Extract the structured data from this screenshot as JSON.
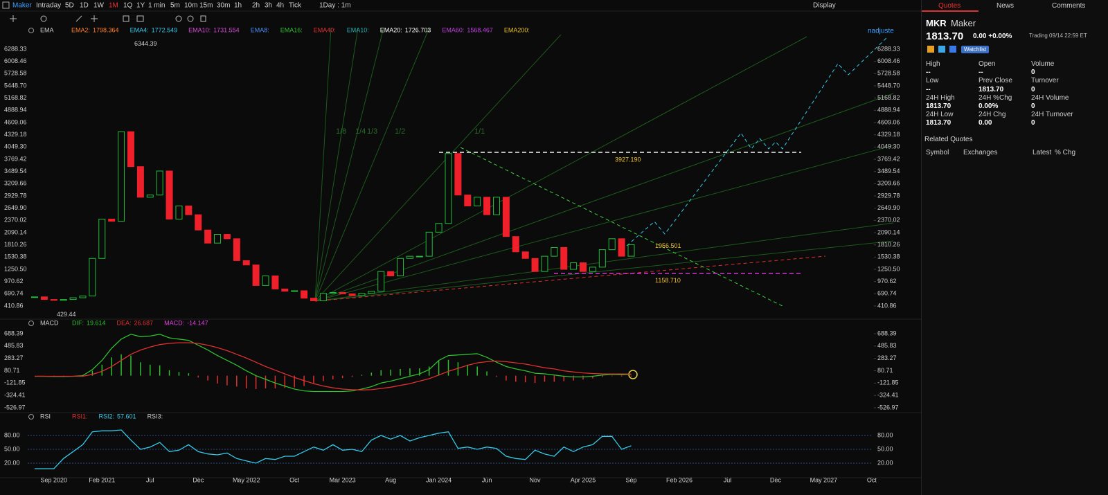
{
  "toolbar": {
    "symbol": "Maker",
    "periods": [
      "Intraday",
      "5D",
      "1D",
      "1W",
      "1M",
      "1Q",
      "1Y",
      "1 min",
      "5m",
      "10m",
      "15m",
      "30m",
      "1h",
      "2h",
      "3h",
      "4h",
      "Tick"
    ],
    "interval": "1Day : 1m",
    "display": "Display",
    "adjust": "nadjuste"
  },
  "chart_data": [
    {
      "type": "candlestick",
      "indicator": "EMA",
      "legend": [
        {
          "name": "EMA2:",
          "value": "1798.364",
          "color": "#ff7f27"
        },
        {
          "name": "EMA4:",
          "value": "1772.549",
          "color": "#35c9e8"
        },
        {
          "name": "EMA10:",
          "value": "1731.554",
          "color": "#d64ad6"
        },
        {
          "name": "EMA8:",
          "color": "#4a8ef0"
        },
        {
          "name": "EMA16:",
          "color": "#2fbf2f"
        },
        {
          "name": "EMA40:",
          "color": "#e03030"
        },
        {
          "name": "EMA10:",
          "color": "#2ab0b0"
        },
        {
          "name": "EMA20:",
          "value": "1726.703",
          "color": "#ffffff"
        },
        {
          "name": "EMA60:",
          "value": "1568.467",
          "color": "#c040e0"
        },
        {
          "name": "EMA200:",
          "color": "#e8c020"
        }
      ],
      "close": [
        620,
        560,
        540,
        560,
        600,
        640,
        1500,
        2400,
        2350,
        4400,
        3600,
        2900,
        2950,
        3500,
        2400,
        2700,
        2500,
        2150,
        1850,
        2050,
        1950,
        1450,
        1350,
        880,
        1100,
        800,
        750,
        760,
        590,
        530,
        700,
        720,
        690,
        650,
        700,
        750,
        1200,
        1100,
        1500,
        1550,
        1550,
        2100,
        2300,
        3900,
        2950,
        2700,
        2900,
        2500,
        2900,
        2000,
        1650,
        1500,
        1200,
        1550,
        1750,
        1250,
        1400,
        1200,
        1300,
        1700,
        1950,
        1550,
        1813.7
      ],
      "up_color": "#1fbf3a",
      "down_color": "#f0202a",
      "ylim": [
        125.7,
        6779.4
      ],
      "xlim": [
        -3.6,
        89.6
      ],
      "yticks": [
        6288.33,
        6008.46,
        5728.58,
        {
          "value": 5448.7,
          "label": "5448.70"
        },
        5168.82,
        4888.94,
        4609.06,
        4329.18,
        {
          "value": 4049.3,
          "label": "4049.30"
        },
        3769.42,
        3489.54,
        3209.66,
        2929.78,
        {
          "value": 2649.9,
          "label": "2649.90"
        },
        2370.02,
        2090.14,
        1810.26,
        1530.38,
        {
          "value": 1250.5,
          "label": "1250.50"
        },
        970.62,
        690.74,
        410.86
      ],
      "high_marker": 6344.39,
      "low_marker": 429.44,
      "levels": [
        {
          "value": 3927.19,
          "label": "3927.190",
          "color": "#ffffff"
        },
        {
          "value": 1956.501,
          "label": "1956.501"
        },
        {
          "value": 1158.71,
          "label": "1158.710",
          "color": "#e040e0"
        }
      ],
      "fan_labels": [
        "1/8",
        "1/4",
        "1/3",
        "1/2",
        "1/1"
      ]
    },
    {
      "type": "macd",
      "indicator": "MACD",
      "legend": [
        {
          "name": "DIF:",
          "value": "19.614",
          "color": "#2fbf2f"
        },
        {
          "name": "DEA:",
          "value": "26.687",
          "color": "#e03030"
        },
        {
          "name": "MACD:",
          "value": "-14.147",
          "color": "#e040e0"
        }
      ],
      "series": [
        {
          "name": "DIF",
          "color": "#2fbf2f",
          "values": [
            -10,
            -10,
            -15,
            -15,
            -10,
            0,
            100,
            250,
            450,
            600,
            680,
            640,
            650,
            680,
            620,
            600,
            580,
            500,
            420,
            330,
            250,
            170,
            80,
            0,
            -60,
            -120,
            -170,
            -220,
            -250,
            -260,
            -260,
            -260,
            -260,
            -250,
            -220,
            -180,
            -120,
            -90,
            -50,
            -10,
            30,
            100,
            250,
            330,
            340,
            350,
            360,
            300,
            220,
            150,
            110,
            80,
            40,
            30,
            10,
            -10,
            -20,
            -20,
            -10,
            10,
            20,
            15,
            19.614
          ]
        },
        {
          "name": "DEA",
          "color": "#e03030",
          "values": [
            -10,
            -10,
            -10,
            -10,
            -10,
            -10,
            20,
            70,
            150,
            250,
            350,
            420,
            470,
            510,
            530,
            540,
            540,
            530,
            500,
            460,
            410,
            350,
            290,
            220,
            150,
            90,
            30,
            -30,
            -80,
            -130,
            -170,
            -200,
            -220,
            -230,
            -235,
            -230,
            -210,
            -190,
            -160,
            -130,
            -90,
            -50,
            10,
            70,
            120,
            170,
            210,
            230,
            240,
            230,
            210,
            190,
            160,
            130,
            110,
            80,
            60,
            45,
            35,
            30,
            28,
            27,
            26.687
          ]
        },
        {
          "name": "MACD",
          "values": [
            0,
            0,
            -5,
            -5,
            0,
            10,
            80,
            180,
            300,
            350,
            330,
            220,
            180,
            170,
            90,
            60,
            40,
            -30,
            -80,
            -130,
            -160,
            -180,
            -210,
            -220,
            -210,
            -210,
            -200,
            -190,
            -170,
            -130,
            -90,
            -60,
            -40,
            -20,
            15,
            50,
            90,
            100,
            110,
            120,
            120,
            150,
            240,
            260,
            220,
            180,
            150,
            70,
            -20,
            -80,
            -100,
            -110,
            -120,
            -100,
            -100,
            -90,
            -80,
            -65,
            -45,
            -20,
            -8,
            -12,
            -14.147
          ]
        }
      ],
      "up_color": "#2fbf2f",
      "down_color": "#e03030",
      "ylim": [
        -595.2,
        768.1
      ],
      "xlim": [
        -3.6,
        89.6
      ],
      "yticks": [
        688.39,
        485.83,
        283.27,
        80.71,
        -121.85,
        -324.41,
        -526.97
      ]
    },
    {
      "type": "line",
      "indicator": "RSI",
      "legend": [
        {
          "name": "RSI1:",
          "color": "#e03030"
        },
        {
          "name": "RSI2:",
          "value": "57.601",
          "color": "#35c9e8"
        },
        {
          "name": "RSI3:",
          "color": "#cfcfcf"
        }
      ],
      "series": [
        {
          "name": "RSI2",
          "color": "#35c9e8",
          "values": [
            8,
            8,
            8,
            30,
            45,
            60,
            88,
            90,
            90,
            92,
            70,
            50,
            55,
            65,
            45,
            48,
            60,
            45,
            40,
            38,
            42,
            30,
            25,
            20,
            30,
            28,
            35,
            35,
            45,
            55,
            48,
            60,
            48,
            50,
            45,
            70,
            80,
            72,
            80,
            68,
            75,
            80,
            85,
            88,
            52,
            55,
            50,
            55,
            52,
            35,
            30,
            28,
            48,
            40,
            35,
            55,
            45,
            55,
            60,
            78,
            78,
            50,
            57.601
          ]
        }
      ],
      "ylim": [
        -8.5,
        105.5
      ],
      "xlim": [
        -3.6,
        89.6
      ],
      "yticks": [
        {
          "value": 80,
          "label": "80.00"
        },
        {
          "value": 50,
          "label": "50.00"
        },
        {
          "value": 20,
          "label": "20.00"
        }
      ],
      "grid": true,
      "grid_color": "#2c4f8c",
      "xticks": [
        {
          "value": 2,
          "label": "Sep 2020"
        },
        {
          "value": 7,
          "label": "Feb 2021"
        },
        {
          "value": 12,
          "label": "Jul"
        },
        {
          "value": 17,
          "label": "Dec"
        },
        {
          "value": 22,
          "label": "May 2022"
        },
        {
          "value": 27,
          "label": "Oct"
        },
        {
          "value": 32,
          "label": "Mar 2023"
        },
        {
          "value": 37,
          "label": "Aug"
        },
        {
          "value": 42,
          "label": "Jan 2024"
        },
        {
          "value": 47,
          "label": "Jun"
        },
        {
          "value": 52,
          "label": "Nov"
        },
        {
          "value": 57,
          "label": "Apr 2025"
        },
        {
          "value": 62,
          "label": "Sep"
        },
        {
          "value": 67,
          "label": "Feb 2026"
        },
        {
          "value": 72,
          "label": "Jul"
        },
        {
          "value": 77,
          "label": "Dec"
        },
        {
          "value": 82,
          "label": "May 2027"
        },
        {
          "value": 87,
          "label": "Oct"
        }
      ]
    }
  ],
  "panel": {
    "tabs": [
      "Quotes",
      "News",
      "Comments"
    ],
    "ticker": "MKR",
    "name": "Maker",
    "price": "1813.70",
    "change": "0.00 +0.00%",
    "status": "Trading 09/14 22:59 ET",
    "watchlist": "Watchlist",
    "stats": [
      [
        "High",
        "Open",
        "Volume"
      ],
      [
        "--",
        "--",
        "0"
      ],
      [
        "Low",
        "Prev Close",
        "Turnover"
      ],
      [
        "--",
        "1813.70",
        "0"
      ],
      [
        "24H High",
        "24H %Chg",
        "24H Volume"
      ],
      [
        "1813.70",
        "0.00%",
        "0"
      ],
      [
        "24H Low",
        "24H Chg",
        "24H Turnover"
      ],
      [
        "1813.70",
        "0.00",
        "0"
      ]
    ],
    "related": "Related Quotes",
    "columns": [
      "Symbol",
      "Exchanges",
      "Latest",
      "% Chg"
    ]
  }
}
